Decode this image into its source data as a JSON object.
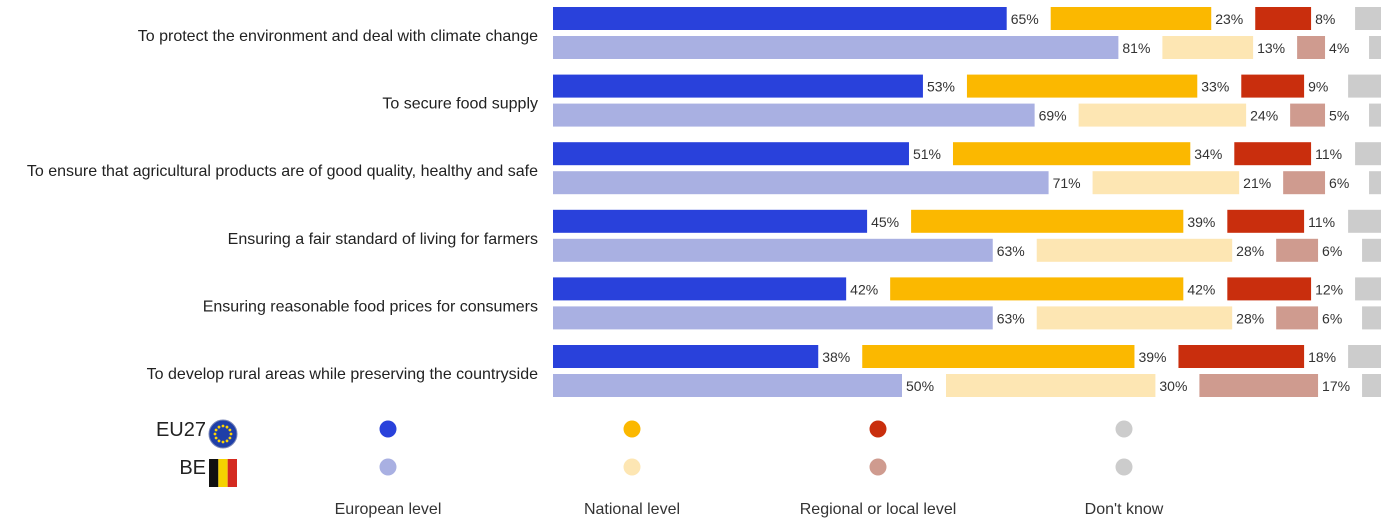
{
  "chart_data": {
    "type": "bar",
    "orientation": "horizontal",
    "stacked": true,
    "unit": "%",
    "grid": false,
    "categories": [
      "To protect the environment and deal with climate change",
      "To secure food supply",
      "To ensure that agricultural products are of good quality, healthy and safe",
      "Ensuring a fair standard of living for farmers",
      "Ensuring reasonable food prices for consumers",
      "To develop rural areas while preserving the countryside"
    ],
    "groups": [
      {
        "name": "EU27",
        "icon": "eu-flag-icon"
      },
      {
        "name": "BE",
        "icon": "belgium-flag-icon"
      }
    ],
    "series": [
      {
        "name": "European level",
        "colors": {
          "EU27": "#2941db",
          "BE": "#a9b0e2"
        },
        "values": {
          "EU27": [
            65,
            53,
            51,
            45,
            42,
            38
          ],
          "BE": [
            81,
            69,
            71,
            63,
            63,
            50
          ]
        }
      },
      {
        "name": "National level",
        "colors": {
          "EU27": "#fbb800",
          "BE": "#fde6b3"
        },
        "values": {
          "EU27": [
            23,
            33,
            34,
            39,
            42,
            39
          ],
          "BE": [
            13,
            24,
            21,
            28,
            28,
            30
          ]
        }
      },
      {
        "name": "Regional or local level",
        "colors": {
          "EU27": "#c92e0d",
          "BE": "#cf9b8f"
        },
        "values": {
          "EU27": [
            8,
            9,
            11,
            11,
            12,
            18
          ],
          "BE": [
            4,
            5,
            6,
            6,
            6,
            17
          ]
        }
      },
      {
        "name": "Don't know",
        "colors": {
          "EU27": "#cccccc",
          "BE": "#cccccc"
        },
        "values": {
          "EU27": [
            4,
            5,
            4,
            5,
            4,
            5
          ],
          "BE": [
            2,
            2,
            2,
            3,
            3,
            3
          ]
        }
      }
    ],
    "legend": {
      "placement": "bottom",
      "groups": [
        "EU27",
        "BE"
      ],
      "labels": [
        "European level",
        "National level",
        "Regional or local level",
        "Don't know"
      ]
    }
  }
}
